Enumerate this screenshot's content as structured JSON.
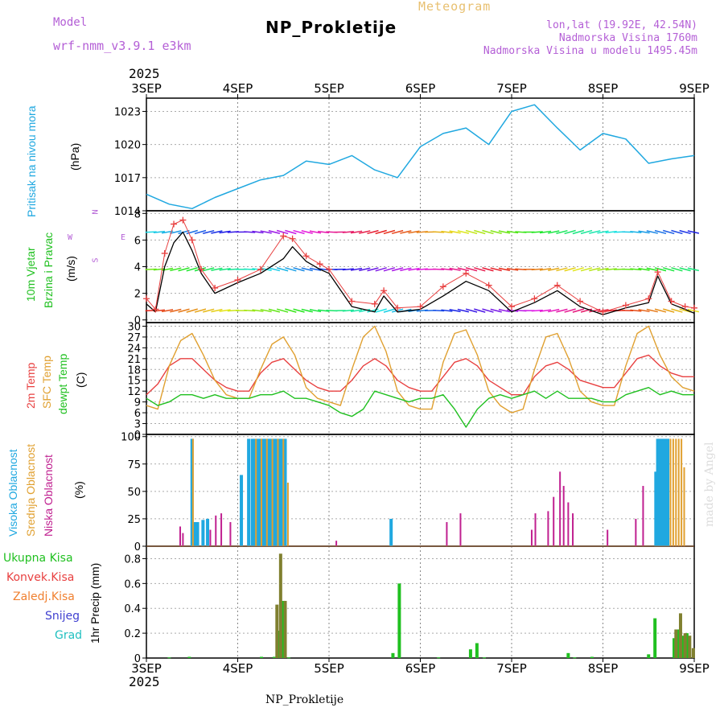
{
  "header": {
    "model_label": "Model",
    "model_name": "wrf-nmm_v3.9.1  e3km",
    "title": "NP_Prokletije",
    "meteogram": "Meteogram",
    "lonlat": "lon,lat (19.92E, 42.54N)",
    "elevation": "Nadmorska Visina 1760m",
    "model_elevation": "Nadmorska Visina u modelu 1495.45m",
    "year_top": "2025",
    "year_bottom": "2025",
    "footer_station": "NP_Prokletije",
    "made_by": "made by Angel"
  },
  "colors": {
    "pressure": "#20a8e0",
    "wind_speed": "#000000",
    "gust": "#e84040",
    "temp2m": "#e84040",
    "sfc_temp": "#e0a030",
    "dewpoint": "#20c020",
    "cloud_high": "#20a8e0",
    "cloud_mid": "#e0a030",
    "cloud_low": "#c02090",
    "precip_total": "#20c020",
    "precip_conv": "#808030"
  },
  "panel_labels": {
    "pressure": [
      "Pritisak na nivou mora",
      "(hPa)"
    ],
    "wind": [
      "10m Vjetar",
      "Brzina i Pravac",
      "(m/s)"
    ],
    "temp": [
      "2m Temp",
      "SFC Temp",
      "dewpt Temp",
      "(C)"
    ],
    "cloud": [
      "Visoka Oblacnost",
      "Srednja Oblacnost",
      "Niska Oblacnost",
      "(%)"
    ],
    "precip_legend": [
      "Ukupna Kisa",
      "Konvek.Kisa",
      "Zaledj.Kisa",
      "Snijeg",
      "Grad"
    ],
    "precip_axis": "1hr Precip (mm)",
    "compass": [
      "N",
      "E",
      "S",
      "W"
    ]
  },
  "chart_data": [
    {
      "type": "line",
      "title": "Pritisak na nivou mora",
      "ylabel": "(hPa)",
      "categories": [
        "3SEP",
        "4SEP",
        "5SEP",
        "6SEP",
        "7SEP",
        "8SEP",
        "9SEP"
      ],
      "x": [
        0,
        0.25,
        0.5,
        0.75,
        1,
        1.25,
        1.5,
        1.75,
        2,
        2.25,
        2.5,
        2.75,
        3,
        3.25,
        3.5,
        3.75,
        4,
        4.25,
        4.5,
        4.75,
        5,
        5.25,
        5.5,
        5.75,
        6
      ],
      "values": [
        1015.5,
        1014.6,
        1014.2,
        1015.2,
        1016,
        1016.8,
        1017.2,
        1018.5,
        1018.2,
        1019,
        1017.7,
        1017,
        1019.8,
        1021,
        1021.5,
        1020,
        1023,
        1023.6,
        1021.5,
        1019.5,
        1021,
        1020.5,
        1018.3,
        1018.7,
        1019
      ],
      "yticks": [
        1014,
        1017,
        1020,
        1023
      ],
      "ylim": [
        1014,
        1024.2
      ]
    },
    {
      "type": "line",
      "title": "10m Vjetar Brzina i Pravac",
      "ylabel": "(m/s)",
      "x": [
        0,
        0.1,
        0.2,
        0.3,
        0.4,
        0.5,
        0.6,
        0.75,
        1,
        1.25,
        1.5,
        1.6,
        1.75,
        1.9,
        2,
        2.25,
        2.5,
        2.6,
        2.75,
        3,
        3.25,
        3.5,
        3.75,
        4,
        4.25,
        4.5,
        4.75,
        5,
        5.25,
        5.5,
        5.6,
        5.75,
        5.9,
        6
      ],
      "values": [
        1.2,
        0.6,
        4,
        5.8,
        6.6,
        5.2,
        3.5,
        2,
        2.8,
        3.5,
        4.6,
        5.5,
        4.4,
        3.8,
        3.5,
        1,
        0.6,
        1.8,
        0.6,
        0.8,
        1.8,
        2.9,
        2.2,
        0.6,
        1.3,
        2.2,
        1.0,
        0.4,
        0.9,
        1.3,
        3.3,
        1.2,
        0.8,
        0.5
      ],
      "gusts": [
        1.6,
        0.8,
        5,
        7.2,
        7.5,
        6,
        3.8,
        2.4,
        3,
        3.8,
        6.3,
        6.1,
        4.8,
        4.2,
        3.8,
        1.4,
        1.2,
        2.2,
        0.9,
        1.0,
        2.5,
        3.5,
        2.6,
        1.0,
        1.6,
        2.6,
        1.4,
        0.6,
        1.1,
        1.6,
        3.6,
        1.4,
        1.0,
        0.9
      ],
      "yticks": [
        0,
        2,
        4,
        6,
        8
      ],
      "ylim": [
        -0.2,
        8.2
      ]
    },
    {
      "type": "line",
      "title": "2m Temp / SFC Temp / dewpt Temp",
      "ylabel": "(C)",
      "x": [
        0,
        0.125,
        0.25,
        0.375,
        0.5,
        0.625,
        0.75,
        0.875,
        1,
        1.125,
        1.25,
        1.375,
        1.5,
        1.625,
        1.75,
        1.875,
        2,
        2.125,
        2.25,
        2.375,
        2.5,
        2.625,
        2.75,
        2.875,
        3,
        3.125,
        3.25,
        3.375,
        3.5,
        3.625,
        3.75,
        3.875,
        4,
        4.125,
        4.25,
        4.375,
        4.5,
        4.625,
        4.75,
        4.875,
        5,
        5.125,
        5.25,
        5.375,
        5.5,
        5.625,
        5.75,
        5.875,
        6
      ],
      "series": [
        {
          "name": "2m Temp",
          "values": [
            11,
            14,
            19,
            21,
            21,
            18,
            15,
            13,
            12,
            12,
            17,
            20,
            21,
            18,
            15,
            13,
            12,
            12,
            15,
            19,
            21,
            19,
            15,
            13,
            12,
            12,
            16,
            20,
            21,
            19,
            15,
            13,
            11,
            11,
            16,
            19,
            20,
            18,
            15,
            14,
            13,
            13,
            17,
            21,
            22,
            19,
            17,
            16,
            16
          ]
        },
        {
          "name": "SFC Temp",
          "values": [
            8,
            7,
            19,
            26,
            28,
            22,
            15,
            11,
            10,
            10,
            18,
            25,
            27,
            22,
            13,
            10,
            9,
            8,
            18,
            27,
            30,
            23,
            12,
            8,
            7,
            7,
            20,
            28,
            29,
            22,
            12,
            8,
            6,
            7,
            18,
            27,
            28,
            21,
            12,
            9,
            8,
            8,
            19,
            28,
            30,
            22,
            16,
            13,
            12
          ]
        },
        {
          "name": "dewpt Temp",
          "values": [
            10,
            8,
            9,
            11,
            11,
            10,
            11,
            10,
            10,
            10,
            11,
            11,
            12,
            10,
            10,
            9,
            8,
            6,
            5,
            7,
            12,
            11,
            10,
            9,
            10,
            10,
            11,
            7,
            2,
            7,
            10,
            11,
            10,
            11,
            12,
            10,
            12,
            10,
            10,
            10,
            9,
            9,
            11,
            12,
            13,
            11,
            12,
            11,
            11
          ]
        }
      ],
      "yticks": [
        0,
        3,
        6,
        9,
        12,
        15,
        18,
        21,
        24,
        27,
        30
      ],
      "ylim": [
        0,
        31
      ]
    },
    {
      "type": "bar",
      "title": "Oblacnost",
      "ylabel": "(%)",
      "series": [
        {
          "name": "Visoka Oblacnost",
          "x": [
            0.5,
            0.53,
            0.56,
            0.62,
            0.67,
            1.04,
            1.12,
            1.16,
            1.19,
            1.22,
            1.25,
            1.28,
            1.31,
            1.34,
            1.37,
            1.4,
            1.43,
            1.46,
            1.49,
            1.52,
            2.68,
            5.58,
            5.6,
            5.62,
            5.65,
            5.68,
            5.71
          ],
          "values": [
            98,
            22,
            22,
            24,
            25,
            65,
            98,
            98,
            98,
            98,
            98,
            98,
            98,
            98,
            98,
            98,
            98,
            98,
            98,
            98,
            25,
            68,
            98,
            98,
            98,
            98,
            98
          ]
        },
        {
          "name": "Srednja Oblacnost",
          "x": [
            0.51,
            1.2,
            1.26,
            1.32,
            1.38,
            1.44,
            1.5,
            1.55,
            5.74,
            5.77,
            5.8,
            5.83,
            5.86,
            5.89
          ],
          "values": [
            98,
            98,
            98,
            98,
            98,
            98,
            98,
            58,
            98,
            98,
            98,
            98,
            98,
            72
          ]
        },
        {
          "name": "Niska Oblacnost",
          "x": [
            0.37,
            0.4,
            0.7,
            0.76,
            0.82,
            0.92,
            2.08,
            3.29,
            3.44,
            4.22,
            4.26,
            4.4,
            4.46,
            4.53,
            4.57,
            4.62,
            4.67,
            5.05,
            5.36,
            5.44
          ],
          "values": [
            18,
            12,
            15,
            28,
            30,
            22,
            5,
            22,
            30,
            15,
            30,
            32,
            45,
            68,
            55,
            40,
            30,
            15,
            25,
            55
          ]
        }
      ],
      "yticks": [
        0,
        25,
        50,
        75,
        100
      ],
      "ylim": [
        0,
        102
      ]
    },
    {
      "type": "bar",
      "title": "1hr Precip (mm)",
      "ylabel": "1hr Precip (mm)",
      "categories": [
        "3SEP",
        "4SEP",
        "5SEP",
        "6SEP",
        "7SEP",
        "8SEP",
        "9SEP"
      ],
      "series": [
        {
          "name": "Ukupna Kisa",
          "x": [
            0.25,
            0.47,
            1.26,
            1.4,
            1.45,
            1.5,
            1.5,
            1.56,
            2.7,
            2.77,
            3.2,
            3.55,
            3.62,
            3.7,
            4.62,
            4.69,
            4.88,
            5.5,
            5.57,
            5.78,
            5.83,
            5.87,
            5.92
          ],
          "values": [
            0.005,
            0.01,
            0.01,
            0.01,
            0.22,
            0.43,
            0.46,
            0.005,
            0.04,
            0.6,
            0.005,
            0.07,
            0.12,
            0.005,
            0.04,
            0.005,
            0.01,
            0.03,
            0.32,
            0.16,
            0.23,
            0.18,
            0.2
          ]
        },
        {
          "name": "Konvek.Kisa",
          "x": [
            1.43,
            1.47,
            1.52,
            5.8,
            5.85,
            5.9,
            5.95,
            5.99
          ],
          "values": [
            0.43,
            0.84,
            0.46,
            0.23,
            0.36,
            0.2,
            0.18,
            0.08
          ]
        }
      ],
      "yticks": [
        0,
        0.2,
        0.4,
        0.6,
        0.8
      ],
      "ylim": [
        0,
        0.9
      ]
    }
  ]
}
